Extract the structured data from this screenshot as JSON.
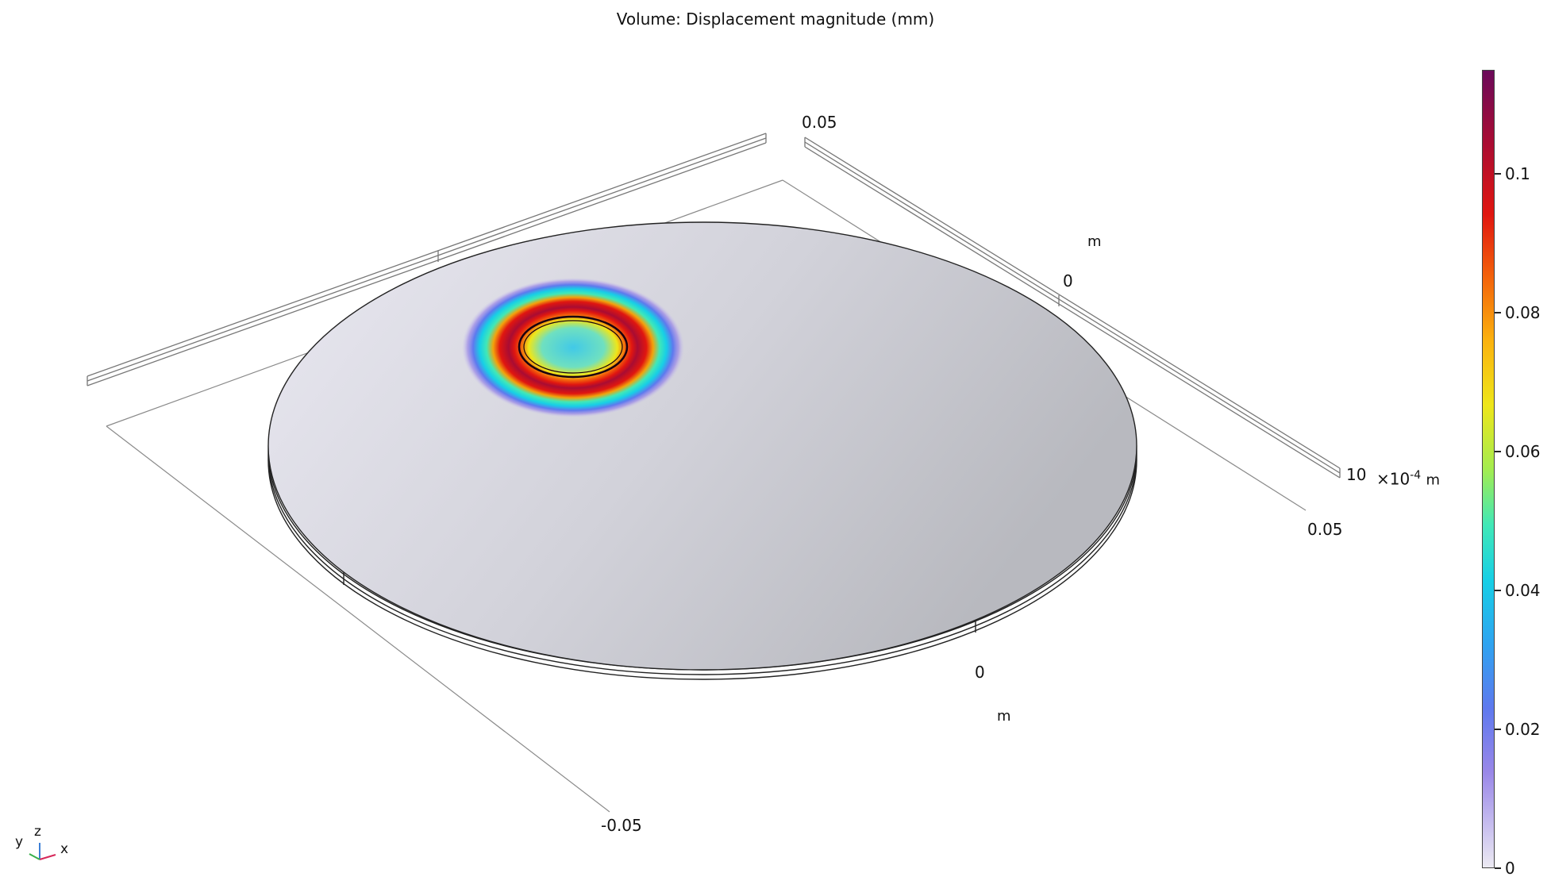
{
  "chart_data": {
    "type": "heatmap",
    "title": "Volume: Displacement magnitude (mm)",
    "quantity": "Displacement magnitude",
    "unit": "mm",
    "colormap": "Rainbow (light)",
    "colorbar": {
      "min": 0,
      "max": 0.115,
      "ticks": [
        0,
        0.02,
        0.04,
        0.06,
        0.08,
        0.1
      ],
      "tick_labels": [
        "0",
        "0.02",
        "0.04",
        "0.06",
        "0.08",
        "0.1"
      ],
      "colors": [
        "#eceaf2",
        "#9987e8",
        "#2fa3f0",
        "#41e8b7",
        "#eee61a",
        "#f3630b",
        "#e01610",
        "#6a0a5a"
      ]
    },
    "axes": {
      "x": {
        "tick_labels": [
          "-0.05",
          "0",
          "0.05"
        ],
        "unit_label": "m"
      },
      "y": {
        "tick_labels": [
          "0",
          "0.05"
        ],
        "unit_label": "m"
      },
      "z": {
        "tick_labels": [
          "10"
        ],
        "unit_label": "m",
        "exponent_label": "×10",
        "exponent": "-4"
      }
    },
    "triad": {
      "x": "x",
      "y": "y",
      "z": "z"
    }
  }
}
